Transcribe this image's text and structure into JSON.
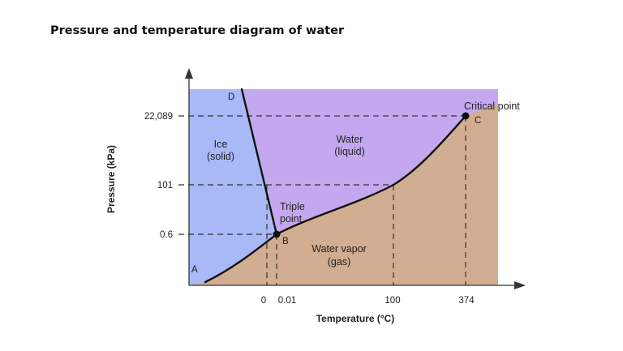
{
  "title": "Pressure and temperature diagram of water",
  "colors": {
    "solid": "#a9b8f7",
    "liquid": "#c4a8ef",
    "gas": "#d1ad91",
    "curve": "#111111",
    "guide": "#333333"
  },
  "axes": {
    "xlabel": "Temperature (°C)",
    "ylabel": "Pressure (kPa)"
  },
  "x_ticks": [
    "0",
    "0.01",
    "100",
    "374"
  ],
  "y_ticks": [
    "22,089",
    "101",
    "0.6"
  ],
  "regions": {
    "solid": [
      "Ice",
      "(solid)"
    ],
    "liquid": [
      "Water",
      "(liquid)"
    ],
    "gas": [
      "Water vapor",
      "(gas)"
    ]
  },
  "points": {
    "triple": {
      "label_lines": [
        "Triple",
        "point"
      ],
      "letter": "B",
      "temperature": "0.01",
      "pressure": "0.6"
    },
    "critical": {
      "label": "Critical point",
      "letter": "C",
      "temperature": "374",
      "pressure": "22,089"
    },
    "A": "A",
    "D": "D"
  }
}
